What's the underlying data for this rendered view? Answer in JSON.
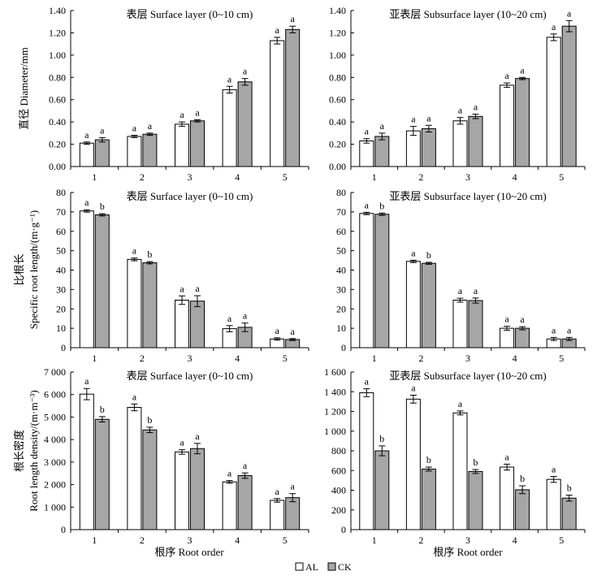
{
  "colors": {
    "al": "#ffffff",
    "ck": "#a6a6a6",
    "stroke": "#000000"
  },
  "legend": [
    {
      "key": "al",
      "label": "AL"
    },
    {
      "key": "ck",
      "label": "CK"
    }
  ],
  "row_ylabels": [
    [
      "直径 Diameter/mm"
    ],
    [
      "比根长",
      "Specific root length/(m·g⁻¹)"
    ],
    [
      "根长密度",
      "Root length density/(m·m⁻³)"
    ]
  ],
  "x_axis_title": "根序 Root order",
  "chart_data": [
    {
      "type": "bar",
      "title": "表层 Surface layer (0~10 cm)",
      "categories": [
        "1",
        "2",
        "3",
        "4",
        "5"
      ],
      "ylim": [
        0,
        1.4
      ],
      "ticks": [
        "0.00",
        "0.20",
        "0.40",
        "0.60",
        "0.80",
        "1.00",
        "1.20",
        "1.40"
      ],
      "series": [
        {
          "name": "AL",
          "values": [
            0.21,
            0.27,
            0.38,
            0.69,
            1.13
          ],
          "errors": [
            0.01,
            0.01,
            0.02,
            0.03,
            0.03
          ],
          "letters": [
            "a",
            "a",
            "a",
            "a",
            "a"
          ]
        },
        {
          "name": "CK",
          "values": [
            0.24,
            0.29,
            0.41,
            0.76,
            1.23
          ],
          "errors": [
            0.02,
            0.01,
            0.01,
            0.03,
            0.03
          ],
          "letters": [
            "a",
            "a",
            "a",
            "a",
            "a"
          ]
        }
      ]
    },
    {
      "type": "bar",
      "title": "亚表层 Subsurface layer (10~20 cm)",
      "categories": [
        "1",
        "2",
        "3",
        "4",
        "5"
      ],
      "ylim": [
        0,
        1.4
      ],
      "ticks": [
        "0.00",
        "0.20",
        "0.40",
        "0.60",
        "0.80",
        "1.00",
        "1.20",
        "1.40"
      ],
      "series": [
        {
          "name": "AL",
          "values": [
            0.23,
            0.32,
            0.41,
            0.73,
            1.16
          ],
          "errors": [
            0.02,
            0.04,
            0.03,
            0.02,
            0.03
          ],
          "letters": [
            "a",
            "a",
            "a",
            "a",
            "a"
          ]
        },
        {
          "name": "CK",
          "values": [
            0.27,
            0.34,
            0.45,
            0.79,
            1.26
          ],
          "errors": [
            0.03,
            0.03,
            0.02,
            0.01,
            0.05
          ],
          "letters": [
            "a",
            "a",
            "a",
            "a",
            "a"
          ]
        }
      ]
    },
    {
      "type": "bar",
      "title": "表层 Surface layer (0~10 cm)",
      "categories": [
        "1",
        "2",
        "3",
        "4",
        "5"
      ],
      "ylim": [
        0,
        80
      ],
      "ticks": [
        "0",
        "10",
        "20",
        "30",
        "40",
        "50",
        "60",
        "70",
        "80"
      ],
      "series": [
        {
          "name": "AL",
          "values": [
            70.5,
            45.5,
            24.5,
            9.8,
            4.5
          ],
          "errors": [
            0.6,
            0.7,
            2.2,
            1.6,
            0.6
          ],
          "letters": [
            "a",
            "a",
            "a",
            "a",
            "a"
          ]
        },
        {
          "name": "CK",
          "values": [
            68.5,
            43.8,
            24.0,
            10.5,
            4.2
          ],
          "errors": [
            0.6,
            0.6,
            2.8,
            2.2,
            0.5
          ],
          "letters": [
            "b",
            "b",
            "a",
            "a",
            "a"
          ]
        }
      ]
    },
    {
      "type": "bar",
      "title": "亚表层 Subsurface layer (10~20 cm)",
      "categories": [
        "1",
        "2",
        "3",
        "4",
        "5"
      ],
      "ylim": [
        0,
        80
      ],
      "ticks": [
        "0",
        "10",
        "20",
        "30",
        "40",
        "50",
        "60",
        "70",
        "80"
      ],
      "series": [
        {
          "name": "AL",
          "values": [
            69.2,
            44.5,
            24.5,
            10.0,
            4.5
          ],
          "errors": [
            0.6,
            0.6,
            1.0,
            1.0,
            0.8
          ],
          "letters": [
            "a",
            "a",
            "a",
            "a",
            "a"
          ]
        },
        {
          "name": "CK",
          "values": [
            68.8,
            43.5,
            24.3,
            10.0,
            4.5
          ],
          "errors": [
            0.6,
            0.5,
            1.3,
            0.8,
            0.8
          ],
          "letters": [
            "b",
            "b",
            "a",
            "a",
            "a"
          ]
        }
      ]
    },
    {
      "type": "bar",
      "title": "表层 Surface layer (0~10 cm)",
      "categories": [
        "1",
        "2",
        "3",
        "4",
        "5"
      ],
      "ylim": [
        0,
        7000
      ],
      "ticks": [
        "0",
        "1 000",
        "2 000",
        "3 000",
        "4 000",
        "5 000",
        "6 000",
        "7 000"
      ],
      "series": [
        {
          "name": "AL",
          "values": [
            6020,
            5430,
            3450,
            2120,
            1300
          ],
          "errors": [
            250,
            150,
            100,
            60,
            80
          ],
          "letters": [
            "a",
            "a",
            "a",
            "a",
            "a"
          ]
        },
        {
          "name": "CK",
          "values": [
            4900,
            4430,
            3600,
            2400,
            1420
          ],
          "errors": [
            120,
            120,
            230,
            120,
            180
          ],
          "letters": [
            "b",
            "b",
            "a",
            "a",
            "a"
          ]
        }
      ]
    },
    {
      "type": "bar",
      "title": "亚表层 Subsurface layer (10~20 cm)",
      "categories": [
        "1",
        "2",
        "3",
        "4",
        "5"
      ],
      "ylim": [
        0,
        1600
      ],
      "ticks": [
        "0",
        "200",
        "400",
        "600",
        "800",
        "1 000",
        "1 200",
        "1 400",
        "1 600"
      ],
      "series": [
        {
          "name": "AL",
          "values": [
            1390,
            1325,
            1185,
            635,
            510
          ],
          "errors": [
            40,
            40,
            20,
            30,
            30
          ],
          "letters": [
            "a",
            "a",
            "a",
            "a",
            "a"
          ]
        },
        {
          "name": "CK",
          "values": [
            800,
            615,
            590,
            405,
            320
          ],
          "errors": [
            50,
            20,
            20,
            40,
            30
          ],
          "letters": [
            "b",
            "b",
            "b",
            "b",
            "b"
          ]
        }
      ]
    }
  ]
}
